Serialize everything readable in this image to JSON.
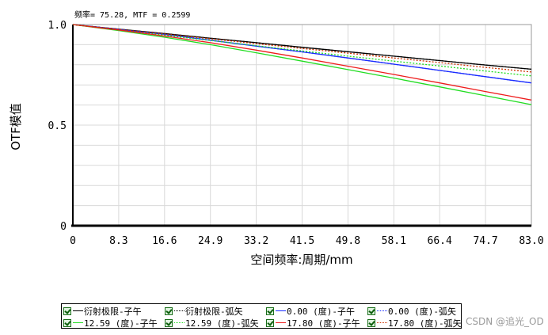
{
  "chart_data": {
    "type": "line",
    "readout": "频率= 75.28, MTF = 0.2599",
    "xlabel": "空间频率:周期/mm",
    "ylabel": "OTF模值",
    "xlim": [
      0,
      83.0
    ],
    "ylim": [
      0,
      1.0
    ],
    "x_ticks": [
      "0",
      "8.3",
      "16.6",
      "24.9",
      "33.2",
      "41.5",
      "49.8",
      "58.1",
      "66.4",
      "74.7",
      "83.0"
    ],
    "y_ticks": [
      {
        "value": 0,
        "label": "0"
      },
      {
        "value": 0.5,
        "label": "0.5"
      },
      {
        "value": 1.0,
        "label": "1.0"
      }
    ],
    "grid": true,
    "x": [
      0,
      8.3,
      16.6,
      24.9,
      33.2,
      41.5,
      49.8,
      58.1,
      66.4,
      74.7,
      83.0
    ],
    "series": [
      {
        "name": "衍射极限-子午",
        "color": "#000000",
        "dash": "solid",
        "values": [
          1.0,
          0.977,
          0.955,
          0.932,
          0.91,
          0.887,
          0.865,
          0.843,
          0.821,
          0.799,
          0.778
        ]
      },
      {
        "name": "衍射极限-弧矢",
        "color": "#000000",
        "dash": "dotted",
        "values": [
          1.0,
          0.977,
          0.955,
          0.932,
          0.91,
          0.887,
          0.865,
          0.843,
          0.821,
          0.799,
          0.778
        ]
      },
      {
        "name": "0.00 (度)-子午",
        "color": "#1a2cff",
        "dash": "solid",
        "values": [
          1.0,
          0.976,
          0.951,
          0.922,
          0.893,
          0.864,
          0.834,
          0.803,
          0.772,
          0.741,
          0.71
        ]
      },
      {
        "name": "0.00 (度)-弧矢",
        "color": "#1a2cff",
        "dash": "dotted",
        "values": [
          1.0,
          0.976,
          0.951,
          0.922,
          0.893,
          0.864,
          0.834,
          0.803,
          0.772,
          0.741,
          0.71
        ]
      },
      {
        "name": "12.59 (度)-子午",
        "color": "#22dd22",
        "dash": "solid",
        "values": [
          1.0,
          0.97,
          0.937,
          0.9,
          0.86,
          0.818,
          0.776,
          0.734,
          0.69,
          0.646,
          0.602
        ]
      },
      {
        "name": "12.59 (度)-弧矢",
        "color": "#22dd22",
        "dash": "dotted",
        "values": [
          1.0,
          0.973,
          0.947,
          0.921,
          0.895,
          0.869,
          0.843,
          0.818,
          0.794,
          0.769,
          0.745
        ]
      },
      {
        "name": "17.80 (度)-子午",
        "color": "#ee1c1c",
        "dash": "solid",
        "values": [
          1.0,
          0.973,
          0.943,
          0.91,
          0.873,
          0.834,
          0.793,
          0.752,
          0.71,
          0.667,
          0.625
        ]
      },
      {
        "name": "17.80 (度)-弧矢",
        "color": "#cc3300",
        "dash": "dotted",
        "values": [
          1.0,
          0.976,
          0.953,
          0.929,
          0.905,
          0.881,
          0.858,
          0.834,
          0.811,
          0.787,
          0.764
        ]
      }
    ]
  },
  "legend": {
    "items": [
      "衍射极限-子午",
      "衍射极限-弧矢",
      "0.00 (度)-子午",
      "0.00 (度)-弧矢",
      "12.59 (度)-子午",
      "12.59 (度)-弧矢",
      "17.80 (度)-子午",
      "17.80 (度)-弧矢"
    ]
  },
  "watermark": "CSDN @追光_OD"
}
